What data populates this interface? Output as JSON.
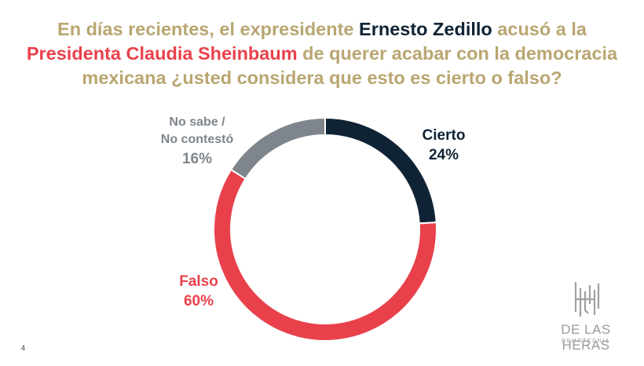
{
  "title": {
    "part1": "En días recientes, el expresidente ",
    "part2": "Ernesto Zedillo",
    "part3": " acusó a la ",
    "part4": "Presidenta Claudia Sheinbaum",
    "part5": " de querer acabar con la democracia mexicana ¿usted considera que esto es cierto o falso?"
  },
  "chart_data": {
    "type": "pie",
    "variant": "donut",
    "categories": [
      "Cierto",
      "Falso",
      "No sabe / No contestó"
    ],
    "values": [
      24,
      60,
      16
    ],
    "unit": "%",
    "colors": [
      "#0f2335",
      "#e8414b",
      "#7f858c"
    ],
    "labels": {
      "cierto": "Cierto",
      "cierto_pct": "24%",
      "falso": "Falso",
      "falso_pct": "60%",
      "ns_line1": "No sabe /",
      "ns_line2": "No contestó",
      "ns_pct": "16%"
    }
  },
  "footer": {
    "page_number": "4",
    "logo_text": "DE LAS HERAS",
    "logo_sub": "DEMOTECNIA"
  }
}
